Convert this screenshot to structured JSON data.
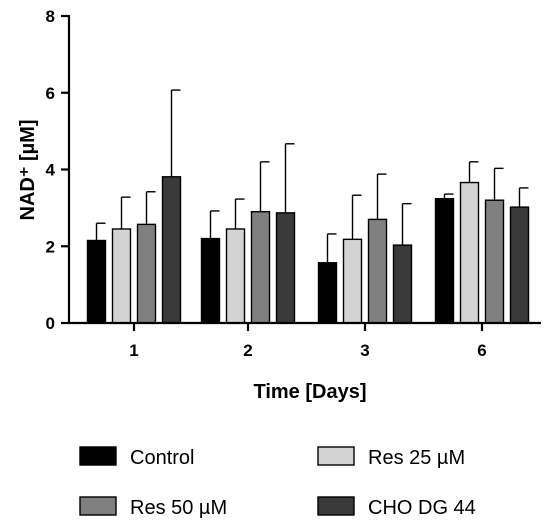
{
  "chart_data": {
    "type": "bar",
    "categories": [
      "1",
      "2",
      "3",
      "6"
    ],
    "xlabel": "Time [Days]",
    "ylabel": "NAD⁺ [µM]",
    "ylim": [
      0,
      8
    ],
    "yticks": [
      "0",
      "2",
      "4",
      "6",
      "8"
    ],
    "grid": false,
    "legend_position": "bottom",
    "series": [
      {
        "name": "Control",
        "color": "#000000",
        "values": [
          2.15,
          2.2,
          1.57,
          3.24
        ],
        "errors": [
          0.45,
          0.72,
          0.75,
          0.12
        ]
      },
      {
        "name": "Res 25 µM",
        "color": "#d3d3d3",
        "values": [
          2.45,
          2.45,
          2.18,
          3.66
        ],
        "errors": [
          0.83,
          0.78,
          1.15,
          0.54
        ]
      },
      {
        "name": "Res 50 µM",
        "color": "#808080",
        "values": [
          2.57,
          2.9,
          2.7,
          3.2
        ],
        "errors": [
          0.85,
          1.3,
          1.18,
          0.83
        ]
      },
      {
        "name": "CHO DG 44",
        "color": "#3a3a3a",
        "values": [
          3.81,
          2.87,
          2.03,
          3.02
        ],
        "errors": [
          2.26,
          1.8,
          1.08,
          0.5
        ]
      }
    ]
  }
}
